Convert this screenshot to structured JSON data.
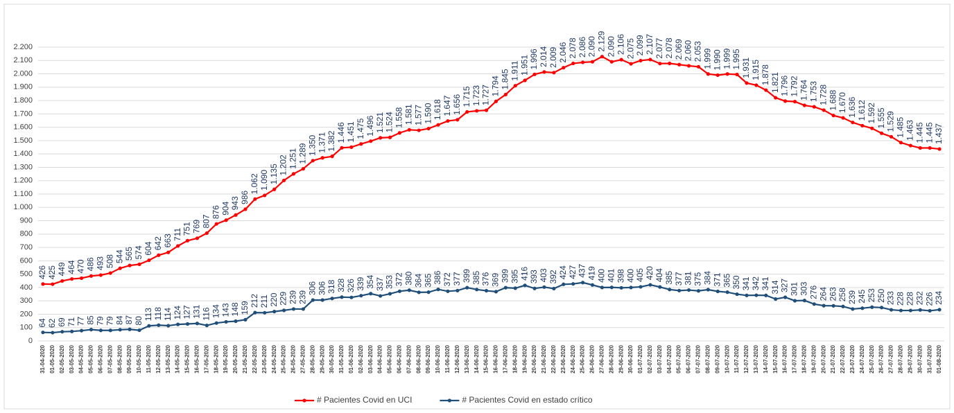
{
  "chart_data": {
    "type": "line",
    "categories": [
      "31-04-2020",
      "01-05-2020",
      "02-05-2020",
      "03-05-2020",
      "04-05-2020",
      "05-05-2020",
      "06-05-2020",
      "07-05-2020",
      "08-05-2020",
      "09-05-2020",
      "10-05-2020",
      "11-05-2020",
      "12-05-2020",
      "13-05-2020",
      "14-05-2020",
      "15-05-2020",
      "16-05-2020",
      "17-05-2020",
      "18-05-2020",
      "19-05-2020",
      "20-05-2020",
      "21-05-2020",
      "22-05-2020",
      "23-05-2020",
      "24-05-2020",
      "25-05-2020",
      "26-05-2020",
      "27-05-2020",
      "28-05-2020",
      "29-05-2020",
      "30-05-2020",
      "31-05-2020",
      "01-06-2020",
      "02-06-2020",
      "03-06-2020",
      "04-06-2020",
      "05-06-2020",
      "06-06-2020",
      "07-06-2020",
      "08-06-2020",
      "09-06-2020",
      "10-06-2020",
      "11-06-2020",
      "12-06-2020",
      "13-06-2020",
      "14-06-2020",
      "15-06-2020",
      "16-06-2020",
      "17-06-2020",
      "18-06-2020",
      "19-06-2020",
      "20-06-2020",
      "21-06-2020",
      "22-06-2020",
      "23-06-2020",
      "24-06-2020",
      "25-06-2020",
      "26-06-2020",
      "27-06-2020",
      "28-06-2020",
      "29-06-2020",
      "30-06-2020",
      "01-07-2020",
      "02-07-2020",
      "03-07-2020",
      "04-07-2020",
      "05-07-2020",
      "06-07-2020",
      "07-07-2020",
      "08-07-2020",
      "09-07-2020",
      "10-07-2020",
      "11-07-2020",
      "12-07-2020",
      "13-07-2020",
      "14-07-2020",
      "15-07-2020",
      "16-07-2020",
      "17-07-2020",
      "18-07-2020",
      "19-07-2020",
      "20-07-2020",
      "21-07-2020",
      "22-07-2020",
      "23-07-2020",
      "24-07-2020",
      "25-07-2020",
      "26-07-2020",
      "27-07-2020",
      "28-07-2020",
      "29-07-2020",
      "30-07-2020",
      "31-07-2020",
      "01-08-2020"
    ],
    "series": [
      {
        "name": "# Pacientes Covid en UCI",
        "color": "#ff0000",
        "values": [
          426,
          425,
          449,
          464,
          470,
          486,
          493,
          508,
          544,
          565,
          574,
          604,
          642,
          663,
          711,
          751,
          769,
          807,
          876,
          904,
          943,
          986,
          1062,
          1090,
          1135,
          1202,
          1251,
          1289,
          1350,
          1371,
          1382,
          1446,
          1451,
          1475,
          1496,
          1521,
          1524,
          1558,
          1581,
          1577,
          1590,
          1618,
          1647,
          1656,
          1715,
          1723,
          1727,
          1794,
          1845,
          1911,
          1951,
          1996,
          2014,
          2009,
          2046,
          2078,
          2086,
          2090,
          2129,
          2090,
          2106,
          2075,
          2099,
          2107,
          2077,
          2078,
          2069,
          2060,
          2053,
          1999,
          1990,
          1999,
          1995,
          1931,
          1915,
          1878,
          1821,
          1796,
          1792,
          1764,
          1753,
          1728,
          1688,
          1670,
          1636,
          1612,
          1592,
          1555,
          1529,
          1485,
          1463,
          1445,
          1445,
          1437
        ],
        "value_labels": [
          "426",
          "425",
          "449",
          "464",
          "470",
          "486",
          "493",
          "508",
          "544",
          "565",
          "574",
          "604",
          "642",
          "663",
          "711",
          "751",
          "769",
          "807",
          "876",
          "904",
          "943",
          "986",
          "1.062",
          "1.090",
          "1.135",
          "1.202",
          "1.251",
          "1.289",
          "1.350",
          "1.371",
          "1.382",
          "1.446",
          "1.451",
          "1.475",
          "1.496",
          "1.521",
          "1.524",
          "1.558",
          "1.581",
          "1.577",
          "1.590",
          "1.618",
          "1.647",
          "1.656",
          "1.715",
          "1.723",
          "1.727",
          "1.794",
          "1.845",
          "1.911",
          "1.951",
          "1.996",
          "2.014",
          "2.009",
          "2.046",
          "2.078",
          "2.086",
          "2.090",
          "2.129",
          "2.090",
          "2.106",
          "2.075",
          "2.099",
          "2.107",
          "2.077",
          "2.078",
          "2.069",
          "2.060",
          "2.053",
          "1.999",
          "1.990",
          "1.999",
          "1.995",
          "1.931",
          "1.915",
          "1.878",
          "1.821",
          "1.796",
          "1.792",
          "1.764",
          "1.753",
          "1.728",
          "1.688",
          "1.670",
          "1.636",
          "1.612",
          "1.592",
          "1.555",
          "1.529",
          "1.485",
          "1.463",
          "1.445",
          "1.445",
          "1.437"
        ]
      },
      {
        "name": "# Pacientes Covid en estado crítico",
        "color": "#1f4e79",
        "values": [
          64,
          62,
          69,
          71,
          77,
          85,
          79,
          79,
          84,
          87,
          80,
          113,
          118,
          114,
          124,
          127,
          131,
          116,
          134,
          143,
          148,
          159,
          212,
          211,
          220,
          229,
          239,
          239,
          306,
          306,
          318,
          328,
          326,
          339,
          354,
          337,
          353,
          372,
          380,
          364,
          365,
          386,
          372,
          377,
          399,
          385,
          376,
          369,
          399,
          395,
          416,
          393,
          403,
          392,
          424,
          427,
          437,
          419,
          400,
          401,
          398,
          400,
          405,
          420,
          404,
          385,
          377,
          381,
          375,
          384,
          371,
          365,
          350,
          341,
          342,
          341,
          314,
          327,
          301,
          303,
          276,
          264,
          263,
          258,
          239,
          245,
          253,
          250,
          233,
          228,
          228,
          232,
          226,
          234
        ]
      }
    ],
    "ylim": [
      0,
      2200
    ],
    "yticks": [
      0,
      100,
      200,
      300,
      400,
      500,
      600,
      700,
      800,
      900,
      {
        "value": 1000,
        "label": "1.000"
      },
      {
        "value": 1100,
        "label": "1.100"
      },
      {
        "value": 1200,
        "label": "1.200"
      },
      {
        "value": 1300,
        "label": "1.300"
      },
      {
        "value": 1400,
        "label": "1.400"
      },
      {
        "value": 1500,
        "label": "1.500"
      },
      {
        "value": 1600,
        "label": "1.600"
      },
      {
        "value": 1700,
        "label": "1.700"
      },
      {
        "value": 1800,
        "label": "1.800"
      },
      {
        "value": 1900,
        "label": "1.900"
      },
      {
        "value": 2000,
        "label": "2.000"
      },
      {
        "value": 2100,
        "label": "2.100"
      },
      {
        "value": 2200,
        "label": "2.200"
      }
    ],
    "grid": true,
    "legend": "bottom"
  }
}
